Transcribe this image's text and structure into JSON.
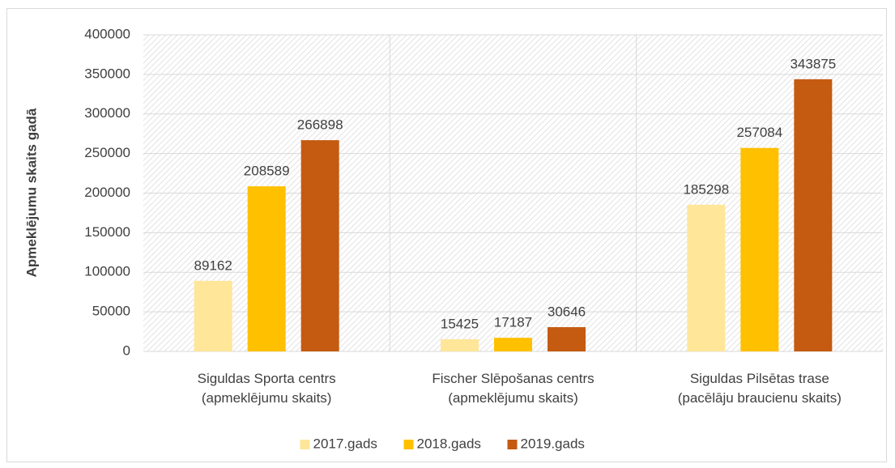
{
  "chart_data": {
    "type": "bar",
    "y_label": "Apmeklējumu skaits gadā",
    "categories": [
      "Siguldas Sporta centrs\n(apmeklējumu skaits)",
      "Fischer Slēpošanas centrs\n(apmeklējumu skaits)",
      "Siguldas Pilsētas trase\n(pacēlāju braucienu skaits)"
    ],
    "series": [
      {
        "name": "2017.gads",
        "color": "#ffe699",
        "values": [
          89162,
          15425,
          185298
        ]
      },
      {
        "name": "2018.gads",
        "color": "#ffc000",
        "values": [
          208589,
          17187,
          257084
        ]
      },
      {
        "name": "2019.gads",
        "color": "#c55a11",
        "values": [
          266898,
          30646,
          343875
        ]
      }
    ],
    "ylim": [
      0,
      400000
    ],
    "yticks": [
      0,
      50000,
      100000,
      150000,
      200000,
      250000,
      300000,
      350000,
      400000
    ],
    "grid": true,
    "legend": "bottom",
    "data_labels": true
  }
}
